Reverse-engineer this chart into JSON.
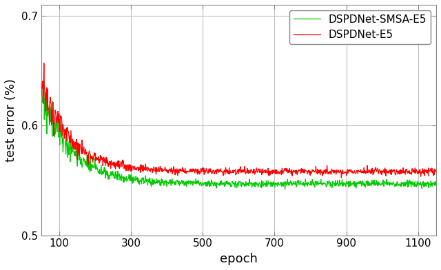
{
  "title": "",
  "xlabel": "epoch",
  "ylabel": "test error (%)",
  "xlim": [
    50,
    1150
  ],
  "ylim": [
    0.5,
    0.71
  ],
  "xticks": [
    100,
    300,
    500,
    700,
    900,
    1100
  ],
  "yticks": [
    0.5,
    0.6,
    0.7
  ],
  "ytick_labels": [
    "0.5",
    "0.6",
    "0.7"
  ],
  "n_epochs": 1150,
  "line1_label": "DSPDNet-E5",
  "line2_label": "DSPDNet-SMSA-E5",
  "line1_color": "#ff0000",
  "line2_color": "#00cc00",
  "line_width": 0.9,
  "legend_fontsize": 11,
  "axis_label_fontsize": 13,
  "tick_fontsize": 11,
  "grid_color": "#c0c0c0",
  "background_color": "#ffffff",
  "red_final": 0.558,
  "green_final": 0.547,
  "decay": 0.012
}
